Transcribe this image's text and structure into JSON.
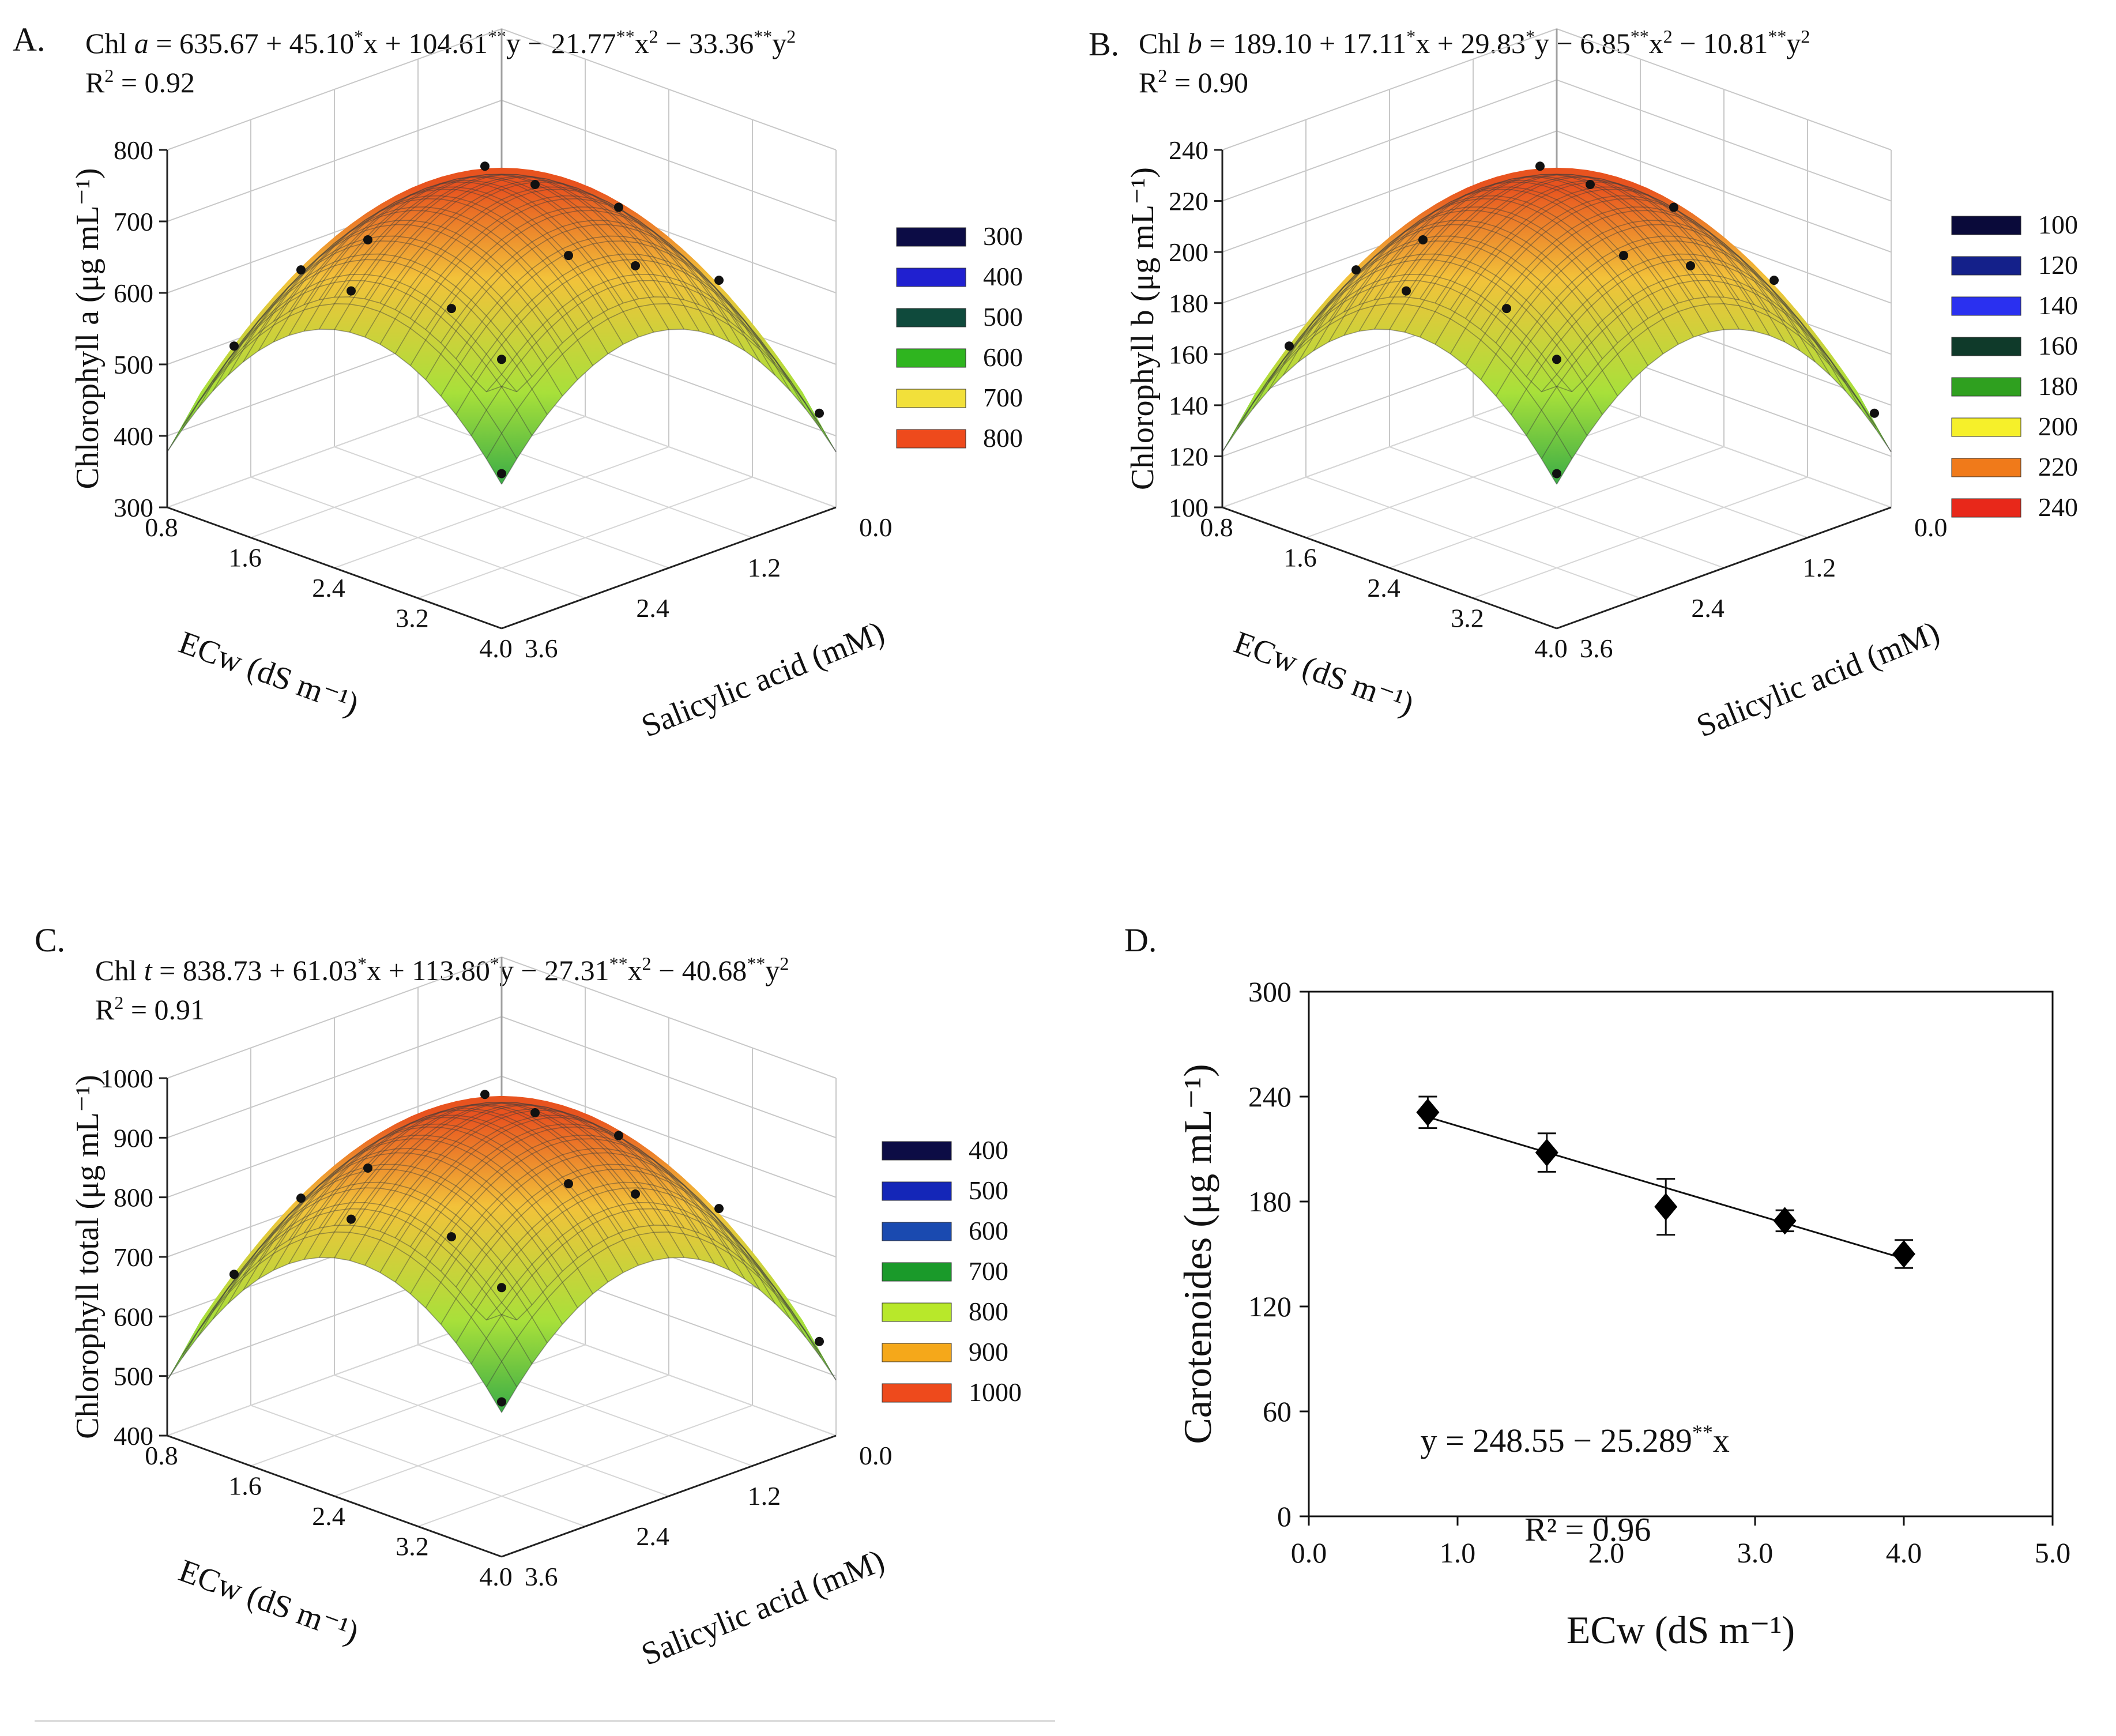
{
  "figure": {
    "colors": {
      "low": "#2a35c8",
      "mid_low": "#1fa04a",
      "mid": "#a8e03a",
      "mid_high": "#f2c23a",
      "high": "#e8531f"
    }
  },
  "chart_data": [
    {
      "type": "surface",
      "panel": "A.",
      "equation": {
        "prefix": "Chl ",
        "var": "a",
        "body": " = 635.67 + 45.10",
        "s1": "*",
        "t1": "x + 104.61",
        "s2": "**",
        "t2": "y − 21.77",
        "s3": "**",
        "t3": "x",
        "p1": "2",
        "t4": " − 33.36",
        "s4": "**",
        "t5": "y",
        "p2": "2"
      },
      "r2": {
        "pre": "R",
        "sup": "2",
        "post": " = 0.92"
      },
      "zlabel": "Chlorophyll a (μg mL⁻¹)",
      "xlabel": "ECw (dS m⁻¹)",
      "ylabel": "Salicylic acid (mM)",
      "z_ticks": [
        "300",
        "400",
        "500",
        "600",
        "700",
        "800"
      ],
      "x_ticks": [
        "0.8",
        "1.6",
        "2.4",
        "3.2",
        "4.0"
      ],
      "y_ticks": [
        "0.0",
        "1.2",
        "2.4",
        "3.6"
      ],
      "zlim": [
        300,
        800
      ],
      "legend": [
        "300",
        "400",
        "500",
        "600",
        "700",
        "800"
      ],
      "legend_colors": [
        "#0c0c45",
        "#2020d0",
        "#0f4a3c",
        "#2fb51f",
        "#f2e03a",
        "#ee4a1c"
      ]
    },
    {
      "type": "surface",
      "panel": "B.",
      "equation": {
        "prefix": "Chl ",
        "var": "b",
        "body": " = 189.10 + 17.11",
        "s1": "*",
        "t1": "x + 29.83",
        "s2": "*",
        "t2": "y − 6.85",
        "s3": "**",
        "t3": "x",
        "p1": "2",
        "t4": " − 10.81",
        "s4": "**",
        "t5": "y",
        "p2": "2"
      },
      "r2": {
        "pre": "R",
        "sup": "2",
        "post": " = 0.90"
      },
      "zlabel": "Chlorophyll b (μg mL⁻¹)",
      "xlabel": "ECw (dS m⁻¹)",
      "ylabel": "Salicylic acid (mM)",
      "z_ticks": [
        "100",
        "120",
        "140",
        "160",
        "180",
        "200",
        "220",
        "240"
      ],
      "x_ticks": [
        "0.8",
        "1.6",
        "2.4",
        "3.2",
        "4.0"
      ],
      "y_ticks": [
        "0.0",
        "1.2",
        "2.4",
        "3.6"
      ],
      "zlim": [
        100,
        240
      ],
      "legend": [
        "100",
        "120",
        "140",
        "160",
        "180",
        "200",
        "220",
        "240"
      ],
      "legend_colors": [
        "#0a0a3a",
        "#14208a",
        "#2a30f0",
        "#0f3a2a",
        "#2fa01f",
        "#f6f02a",
        "#f07a1a",
        "#e8281a"
      ]
    },
    {
      "type": "surface",
      "panel": "C.",
      "equation": {
        "prefix": "Chl ",
        "var": "t",
        "body": " = 838.73 + 61.03",
        "s1": "*",
        "t1": "x + 113.80",
        "s2": "*",
        "t2": "y − 27.31",
        "s3": "**",
        "t3": "x",
        "p1": "2",
        "t4": " − 40.68",
        "s4": "**",
        "t5": "y",
        "p2": "2"
      },
      "r2": {
        "pre": "R",
        "sup": "2",
        "post": " = 0.91"
      },
      "zlabel": "Chlorophyll total (μg mL⁻¹)",
      "xlabel": "ECw (dS m⁻¹)",
      "ylabel": "Salicylic acid (mM)",
      "z_ticks": [
        "400",
        "500",
        "600",
        "700",
        "800",
        "900",
        "1000"
      ],
      "x_ticks": [
        "0.8",
        "1.6",
        "2.4",
        "3.2",
        "4.0"
      ],
      "y_ticks": [
        "0.0",
        "1.2",
        "2.4",
        "3.6"
      ],
      "zlim": [
        400,
        1000
      ],
      "legend": [
        "400",
        "500",
        "600",
        "700",
        "800",
        "900",
        "1000"
      ],
      "legend_colors": [
        "#0c0c45",
        "#1426b8",
        "#1a4ab0",
        "#1a9a2a",
        "#b8e82a",
        "#f5a81a",
        "#ee4a1c"
      ]
    },
    {
      "type": "scatter",
      "panel": "D.",
      "xlabel": "ECw (dS m⁻¹)",
      "ylabel": "Carotenoides (μg mL⁻¹)",
      "x": [
        0.8,
        1.6,
        2.4,
        3.2,
        4.0
      ],
      "y": [
        231,
        208,
        177,
        169,
        150
      ],
      "err": [
        9,
        11,
        16,
        6,
        8
      ],
      "fit": {
        "intercept": 248.55,
        "slope": -25.289,
        "x_range": [
          0.8,
          4.0
        ]
      },
      "equation": {
        "pre": "y = 248.55 − 25.289",
        "stars": "**",
        "post": "x"
      },
      "r2": "R² = 0.96",
      "xlim": [
        0,
        5
      ],
      "ylim": [
        0,
        300
      ],
      "x_ticks": [
        "0.0",
        "1.0",
        "2.0",
        "3.0",
        "4.0",
        "5.0"
      ],
      "y_ticks": [
        "0",
        "60",
        "120",
        "180",
        "240",
        "300"
      ]
    }
  ]
}
